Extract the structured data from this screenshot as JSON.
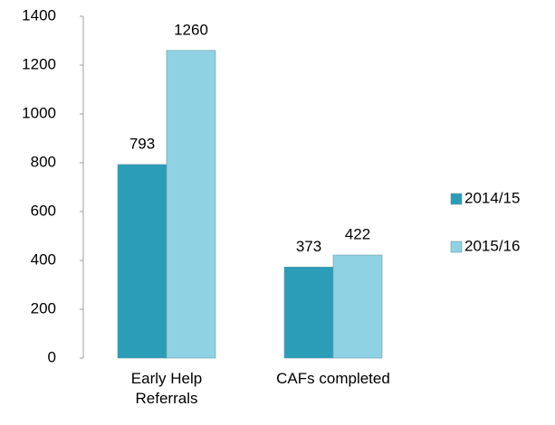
{
  "chart_data": {
    "type": "bar",
    "categories": [
      "Early Help Referrals",
      "CAFs completed"
    ],
    "series": [
      {
        "name": "2014/15",
        "color": "#2b9db6",
        "values": [
          793,
          373
        ]
      },
      {
        "name": "2015/16",
        "color": "#8fd2e3",
        "values": [
          1260,
          422
        ]
      }
    ],
    "ylim": [
      0,
      1400
    ],
    "yticks": [
      0,
      200,
      400,
      600,
      800,
      1000,
      1200,
      1400
    ],
    "grid": false,
    "legend": "right"
  }
}
